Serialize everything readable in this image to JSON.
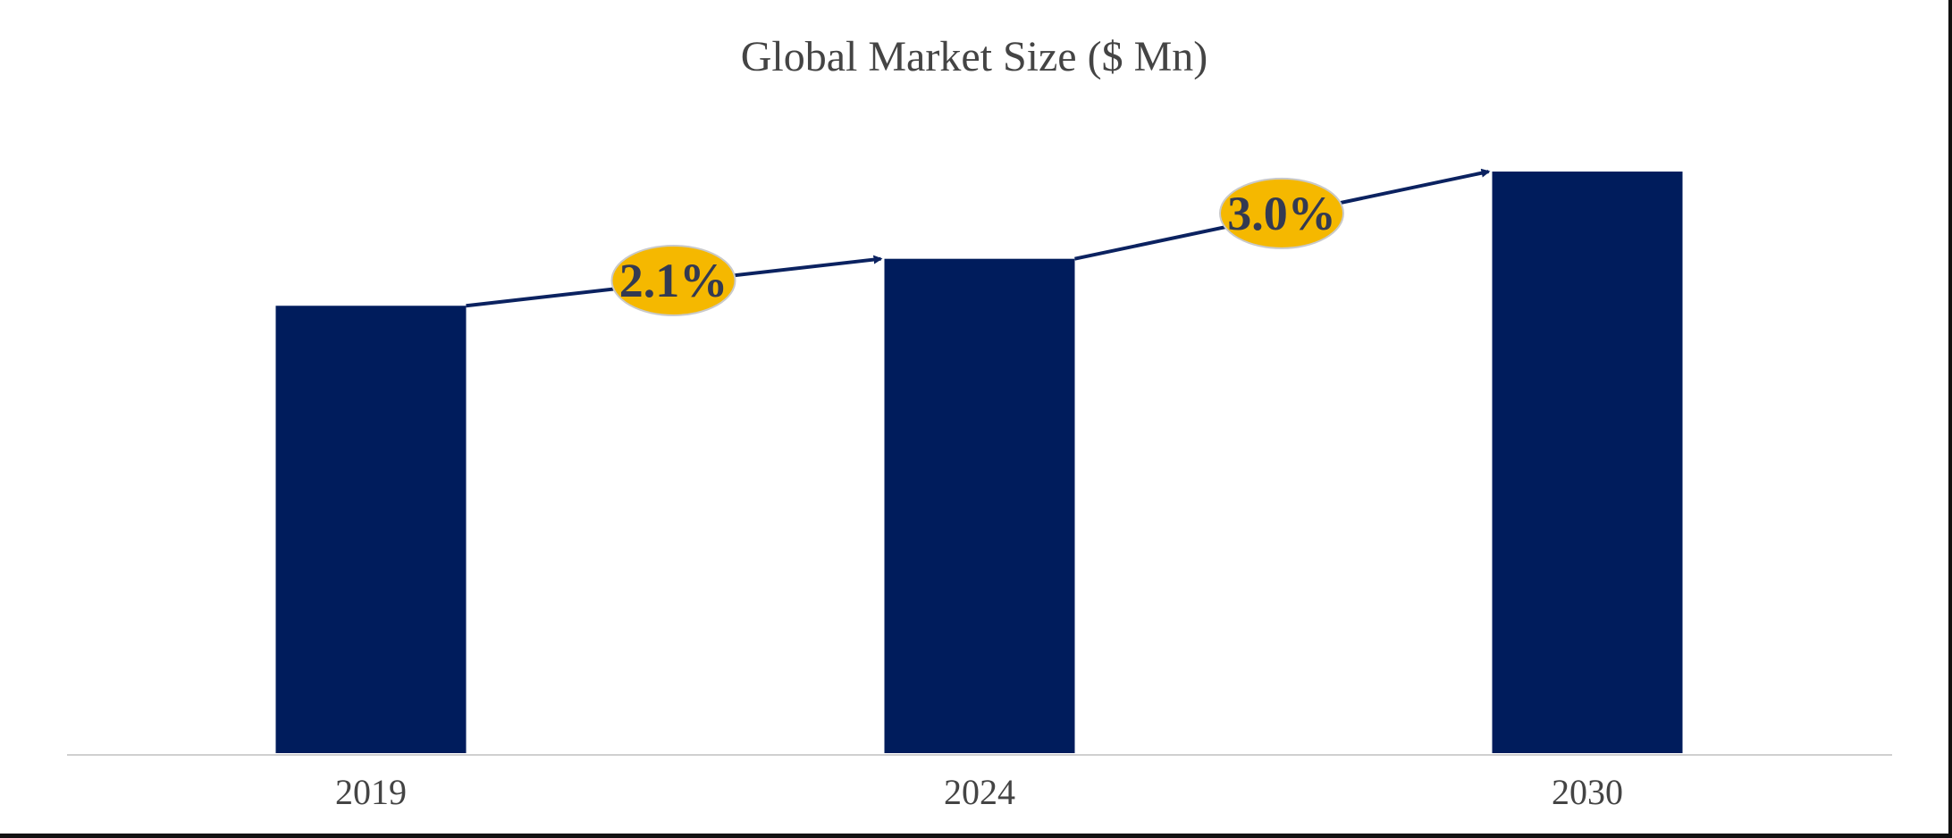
{
  "chart_data": {
    "type": "bar",
    "title": "Global Market Size ($ Mn)",
    "xlabel": "",
    "ylabel": "",
    "categories": [
      "2019",
      "2024",
      "2030"
    ],
    "values": [
      100,
      110.5,
      130
    ],
    "ylim": [
      0,
      135
    ],
    "grid": false,
    "legend": "none",
    "bar_color": "#001c5c",
    "annotations": [
      {
        "from": "2019",
        "to": "2024",
        "label": "2.1%"
      },
      {
        "from": "2024",
        "to": "2030",
        "label": "3.0%"
      }
    ],
    "annotation_fill": "#f5b800",
    "arrow_color": "#0b2260"
  }
}
